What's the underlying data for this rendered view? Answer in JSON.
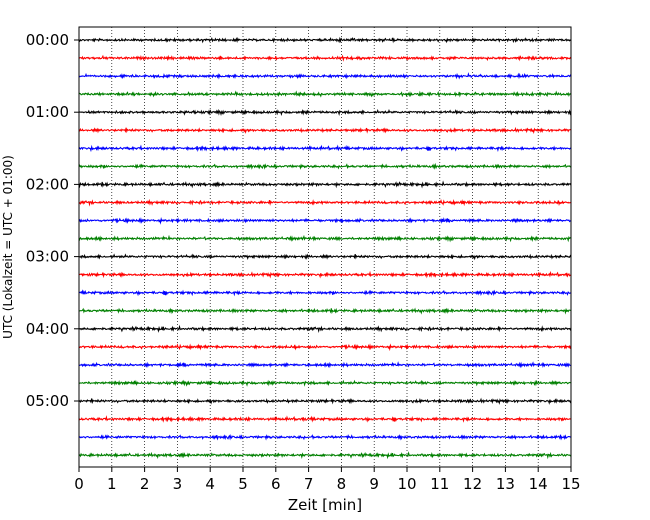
{
  "chart_data": {
    "type": "line",
    "title": "",
    "xlabel": "Zeit  [min]",
    "ylabel": "UTC (Lokalzeit = UTC + 01:00)",
    "xlim": [
      0,
      15
    ],
    "x_ticks": [
      0,
      1,
      2,
      3,
      4,
      5,
      6,
      7,
      8,
      9,
      10,
      11,
      12,
      13,
      14,
      15
    ],
    "y_tick_labels": [
      "00:00",
      "01:00",
      "02:00",
      "03:00",
      "04:00",
      "05:00"
    ],
    "trace_start_times": [
      "00:00",
      "00:15",
      "00:30",
      "00:45",
      "01:00",
      "01:15",
      "01:30",
      "01:45",
      "02:00",
      "02:15",
      "02:30",
      "02:45",
      "03:00",
      "03:15",
      "03:30",
      "03:45",
      "04:00",
      "04:15",
      "04:30",
      "04:45",
      "05:00",
      "05:15",
      "05:30",
      "05:45"
    ],
    "trace_colors": [
      "#000000",
      "#ff0000",
      "#0000ff",
      "#008000"
    ],
    "grid": {
      "x": true,
      "y": false,
      "style": "dotted"
    }
  }
}
